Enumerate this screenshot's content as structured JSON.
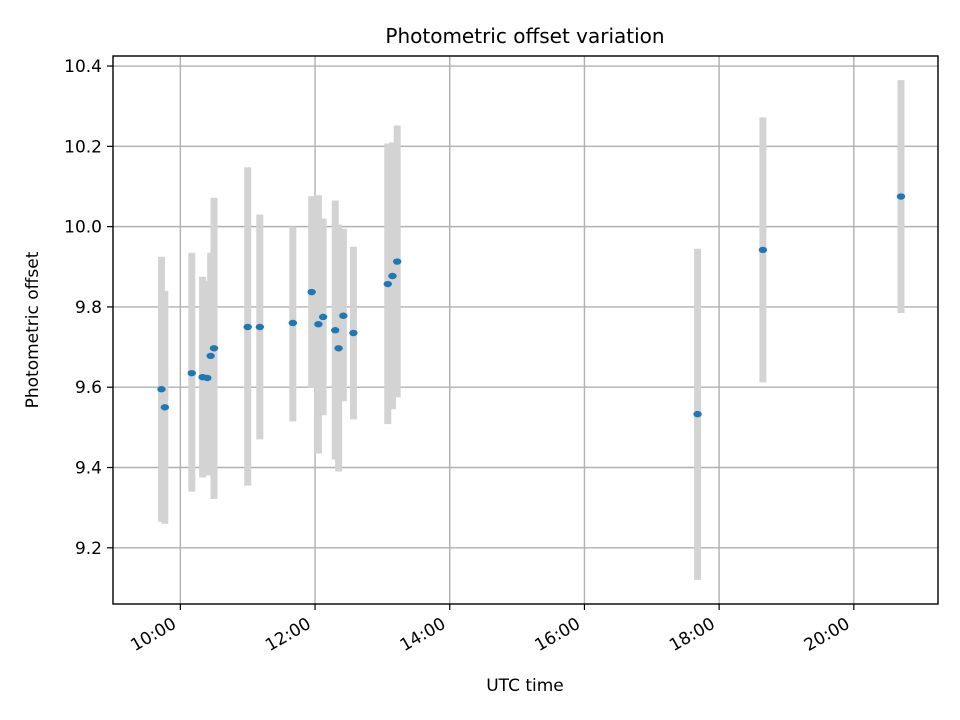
{
  "chart_data": {
    "type": "scatter",
    "title": "Photometric offset variation",
    "xlabel": "UTC time",
    "ylabel": "Photometric offset",
    "x_unit": "hours UTC",
    "xlim": [
      9.0,
      21.25
    ],
    "ylim": [
      9.06,
      10.425
    ],
    "x_ticks": [
      {
        "value": 10,
        "label": "10:00"
      },
      {
        "value": 12,
        "label": "12:00"
      },
      {
        "value": 14,
        "label": "14:00"
      },
      {
        "value": 16,
        "label": "16:00"
      },
      {
        "value": 18,
        "label": "18:00"
      },
      {
        "value": 20,
        "label": "20:00"
      }
    ],
    "y_ticks": [
      {
        "value": 9.2,
        "label": "9.2"
      },
      {
        "value": 9.4,
        "label": "9.4"
      },
      {
        "value": 9.6,
        "label": "9.6"
      },
      {
        "value": 9.8,
        "label": "9.8"
      },
      {
        "value": 10.0,
        "label": "10.0"
      },
      {
        "value": 10.2,
        "label": "10.2"
      },
      {
        "value": 10.4,
        "label": "10.4"
      }
    ],
    "grid": true,
    "marker_color": "#1f77b4",
    "errorbar_color": "#d3d3d3",
    "points": [
      {
        "x": 9.72,
        "y": 9.595,
        "lo": 9.265,
        "hi": 9.925
      },
      {
        "x": 9.77,
        "y": 9.55,
        "lo": 9.26,
        "hi": 9.84
      },
      {
        "x": 10.17,
        "y": 9.635,
        "lo": 9.34,
        "hi": 9.935
      },
      {
        "x": 10.33,
        "y": 9.625,
        "lo": 9.375,
        "hi": 9.875
      },
      {
        "x": 10.4,
        "y": 9.623,
        "lo": 9.38,
        "hi": 9.865
      },
      {
        "x": 10.45,
        "y": 9.678,
        "lo": 9.425,
        "hi": 9.935
      },
      {
        "x": 10.5,
        "y": 9.697,
        "lo": 9.322,
        "hi": 10.072
      },
      {
        "x": 11.0,
        "y": 9.75,
        "lo": 9.355,
        "hi": 10.148
      },
      {
        "x": 11.18,
        "y": 9.75,
        "lo": 9.47,
        "hi": 10.03
      },
      {
        "x": 11.67,
        "y": 9.76,
        "lo": 9.515,
        "hi": 10.0
      },
      {
        "x": 11.95,
        "y": 9.837,
        "lo": 9.598,
        "hi": 10.076
      },
      {
        "x": 12.05,
        "y": 9.757,
        "lo": 9.435,
        "hi": 10.078
      },
      {
        "x": 12.12,
        "y": 9.775,
        "lo": 9.53,
        "hi": 10.02
      },
      {
        "x": 12.3,
        "y": 9.742,
        "lo": 9.42,
        "hi": 10.065
      },
      {
        "x": 12.35,
        "y": 9.697,
        "lo": 9.39,
        "hi": 10.005
      },
      {
        "x": 12.42,
        "y": 9.778,
        "lo": 9.565,
        "hi": 9.995
      },
      {
        "x": 12.57,
        "y": 9.735,
        "lo": 9.52,
        "hi": 9.95
      },
      {
        "x": 13.08,
        "y": 9.857,
        "lo": 9.508,
        "hi": 10.207
      },
      {
        "x": 13.15,
        "y": 9.877,
        "lo": 9.545,
        "hi": 10.21
      },
      {
        "x": 13.22,
        "y": 9.913,
        "lo": 9.575,
        "hi": 10.252
      },
      {
        "x": 17.68,
        "y": 9.533,
        "lo": 9.12,
        "hi": 9.945
      },
      {
        "x": 18.65,
        "y": 9.942,
        "lo": 9.612,
        "hi": 10.272
      },
      {
        "x": 20.7,
        "y": 10.075,
        "lo": 9.785,
        "hi": 10.365
      }
    ]
  }
}
